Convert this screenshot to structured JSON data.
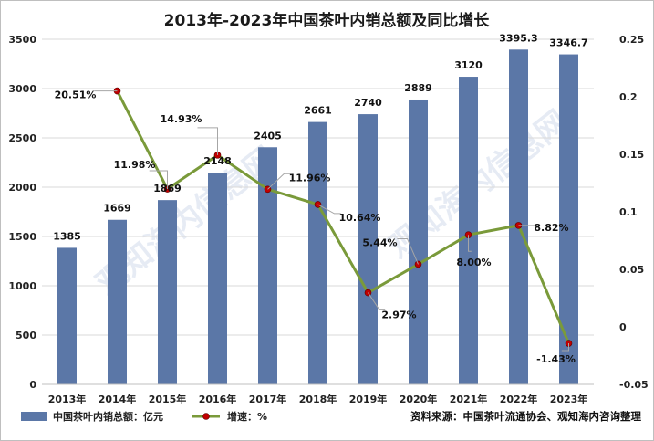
{
  "chart_data": {
    "type": "bar",
    "title": "2013年-2023年中国茶叶内销总额及同比增长",
    "categories": [
      "2013年",
      "2014年",
      "2015年",
      "2016年",
      "2017年",
      "2018年",
      "2019年",
      "2020年",
      "2021年",
      "2022年",
      "2023年"
    ],
    "series": [
      {
        "name": "中国茶叶内销总额：亿元",
        "type": "bar",
        "axis": "left",
        "color": "#5b77a7",
        "values": [
          1385,
          1669,
          1869,
          2148,
          2405,
          2661,
          2740,
          2889,
          3120,
          3395.3,
          3346.7
        ],
        "labels": [
          "1385",
          "1669",
          "1869",
          "2148",
          "2405",
          "2661",
          "2740",
          "2889",
          "3120",
          "3395.3",
          "3346.7"
        ]
      },
      {
        "name": "增速：%",
        "type": "line",
        "axis": "right",
        "color": "#7a9a3a",
        "marker_color": "#c00000",
        "values": [
          null,
          0.2051,
          0.1198,
          0.1493,
          0.1196,
          0.1064,
          0.0297,
          0.0544,
          0.08,
          0.0882,
          -0.0143
        ],
        "labels": [
          "",
          "20.51%",
          "11.98%",
          "14.93%",
          "11.96%",
          "10.64%",
          "2.97%",
          "5.44%",
          "8.00%",
          "8.82%",
          "-1.43%"
        ]
      }
    ],
    "y_left": {
      "min": 0,
      "max": 3500,
      "ticks": [
        0,
        500,
        1000,
        1500,
        2000,
        2500,
        3000,
        3500
      ]
    },
    "y_right": {
      "min": -0.05,
      "max": 0.25,
      "ticks": [
        -0.05,
        0,
        0.05,
        0.1,
        0.15,
        0.2,
        0.25
      ],
      "tick_labels": [
        "-0.05",
        "0",
        "0.05",
        "0.1",
        "0.15",
        "0.2",
        "0.25"
      ]
    },
    "grid": true,
    "legend": "bottom-left"
  },
  "source": "资料来源：中国茶叶流通协会、观知海内咨询整理",
  "watermark": "观知海内信息网"
}
